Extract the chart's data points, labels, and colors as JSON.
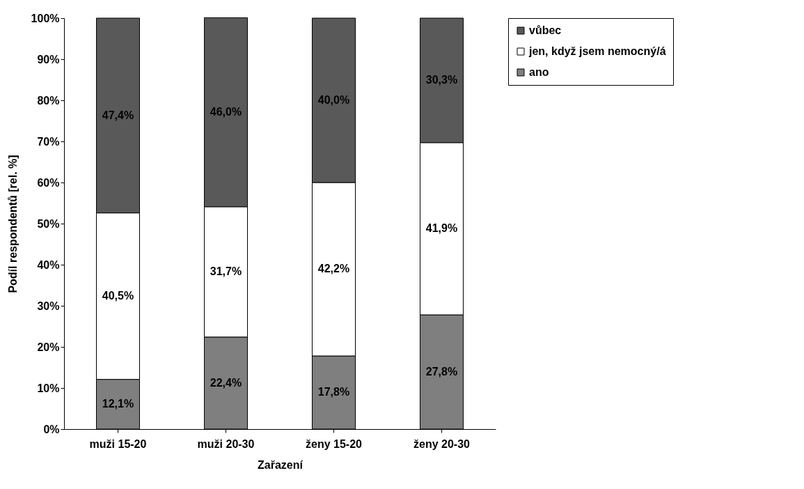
{
  "chart_data": {
    "type": "bar",
    "stacked": true,
    "xlabel": "Zařazení",
    "ylabel": "Podíl respondentů [rel. %]",
    "categories": [
      "muži 15-20",
      "muži 20-30",
      "ženy 15-20",
      "ženy 20-30"
    ],
    "series": [
      {
        "name": "ano",
        "color": "#7f7f7f",
        "values": [
          12.1,
          22.4,
          17.8,
          27.8
        ],
        "value_labels": [
          "12,1%",
          "22,4%",
          "17,8%",
          "27,8%"
        ]
      },
      {
        "name": "jen, když jsem nemocný/á",
        "color": "#ffffff",
        "values": [
          40.5,
          31.7,
          42.2,
          41.9
        ],
        "value_labels": [
          "40,5%",
          "31,7%",
          "42,2%",
          "41,9%"
        ]
      },
      {
        "name": "vůbec",
        "color": "#595959",
        "values": [
          47.4,
          46.0,
          40.0,
          30.3
        ],
        "value_labels": [
          "47,4%",
          "46,0%",
          "40,0%",
          "30,3%"
        ]
      }
    ],
    "ylim": [
      0,
      100
    ],
    "yticks": [
      {
        "value": 0,
        "label": "0%"
      },
      {
        "value": 10,
        "label": "10%"
      },
      {
        "value": 20,
        "label": "20%"
      },
      {
        "value": 30,
        "label": "30%"
      },
      {
        "value": 40,
        "label": "40%"
      },
      {
        "value": 50,
        "label": "50%"
      },
      {
        "value": 60,
        "label": "60%"
      },
      {
        "value": 70,
        "label": "70%"
      },
      {
        "value": 80,
        "label": "80%"
      },
      {
        "value": 90,
        "label": "90%"
      },
      {
        "value": 100,
        "label": "100%"
      }
    ],
    "grid": false,
    "legend": "right"
  }
}
